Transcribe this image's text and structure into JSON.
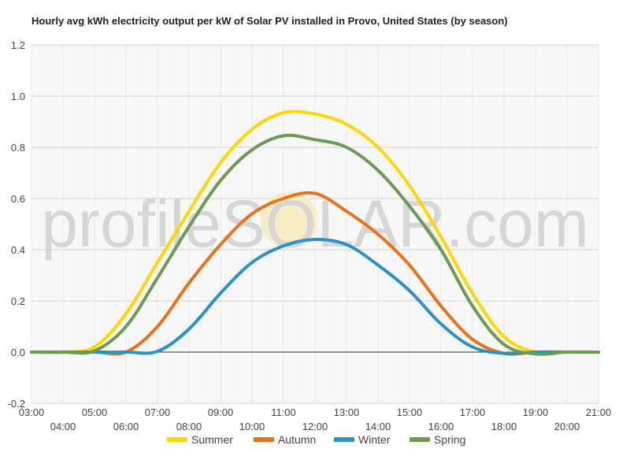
{
  "chart_data": {
    "type": "line",
    "title": "Hourly avg kWh electricity output per kW of Solar PV installed in Provo, United States (by season)",
    "xlabel": "",
    "ylabel": "",
    "ylim": [
      -0.2,
      1.2
    ],
    "xlim": [
      3,
      21
    ],
    "grid": true,
    "legend_position": "bottom",
    "y_ticks": [
      "-0.2",
      "0.0",
      "0.2",
      "0.4",
      "0.6",
      "0.8",
      "1.0",
      "1.2"
    ],
    "x_ticks": [
      "03:00",
      "04:00",
      "05:00",
      "06:00",
      "07:00",
      "08:00",
      "09:00",
      "10:00",
      "11:00",
      "12:00",
      "13:00",
      "14:00",
      "15:00",
      "16:00",
      "17:00",
      "18:00",
      "19:00",
      "20:00",
      "21:00"
    ],
    "x": [
      3,
      4,
      5,
      6,
      7,
      8,
      9,
      10,
      11,
      12,
      13,
      14,
      15,
      16,
      17,
      18,
      19,
      20,
      21
    ],
    "series": [
      {
        "name": "Summer",
        "color": "#ffd700",
        "values": [
          0,
          0,
          0.02,
          0.15,
          0.35,
          0.55,
          0.74,
          0.87,
          0.935,
          0.93,
          0.89,
          0.8,
          0.65,
          0.45,
          0.23,
          0.06,
          0.0,
          0.0,
          0.0
        ]
      },
      {
        "name": "Autumn",
        "color": "#e8721c",
        "values": [
          0,
          0,
          0,
          0,
          0.1,
          0.27,
          0.42,
          0.54,
          0.6,
          0.62,
          0.55,
          0.46,
          0.34,
          0.18,
          0.05,
          -0.005,
          0,
          0,
          0
        ]
      },
      {
        "name": "Winter",
        "color": "#2a93c4",
        "values": [
          0,
          0,
          0,
          0,
          0.003,
          0.09,
          0.23,
          0.35,
          0.415,
          0.44,
          0.42,
          0.34,
          0.24,
          0.11,
          0.02,
          -0.005,
          0,
          0,
          0
        ]
      },
      {
        "name": "Spring",
        "color": "#6c9a55",
        "values": [
          0,
          0,
          0.005,
          0.1,
          0.29,
          0.49,
          0.67,
          0.79,
          0.845,
          0.83,
          0.8,
          0.71,
          0.57,
          0.4,
          0.18,
          0.03,
          -0.007,
          0,
          0
        ]
      }
    ]
  },
  "watermark": {
    "text": "profileSOLAR.com"
  }
}
